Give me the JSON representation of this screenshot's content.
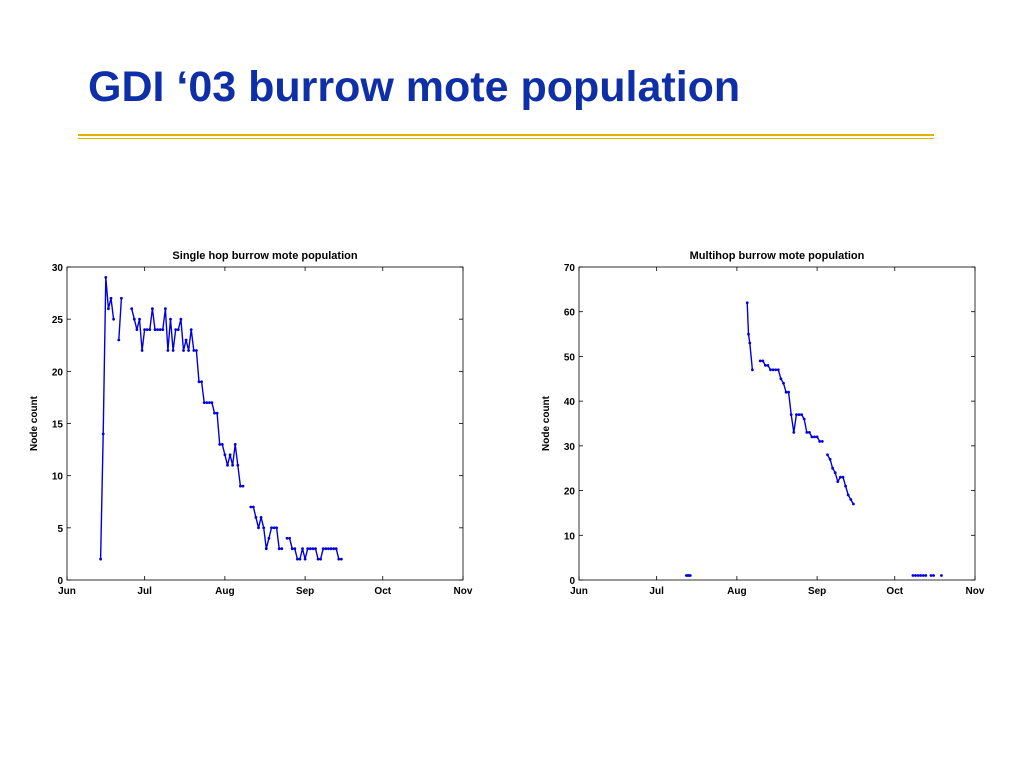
{
  "slide": {
    "title": "GDI ‘03 burrow mote population"
  },
  "colors": {
    "title": "#0f2fa8",
    "rule": "#e3b100",
    "series": "#0000dd"
  },
  "chart_data": [
    {
      "type": "line",
      "title": "Single hop burrow mote population",
      "xlabel": "",
      "ylabel": "Node count",
      "x_unit": "days since Jun 1",
      "xlim": [
        0,
        153
      ],
      "ylim": [
        0,
        30
      ],
      "xticks": [
        {
          "value": 0,
          "label": "Jun"
        },
        {
          "value": 30,
          "label": "Jul"
        },
        {
          "value": 61,
          "label": "Aug"
        },
        {
          "value": 92,
          "label": "Sep"
        },
        {
          "value": 122,
          "label": "Oct"
        },
        {
          "value": 153,
          "label": "Nov"
        }
      ],
      "yticks": [
        0,
        5,
        10,
        15,
        20,
        25,
        30
      ],
      "grid": false,
      "series": [
        {
          "name": "",
          "segments": [
            [
              [
                13,
                2
              ],
              [
                14,
                14
              ],
              [
                15,
                29
              ],
              [
                16,
                26
              ],
              [
                17,
                27
              ],
              [
                18,
                25
              ]
            ],
            [
              [
                20,
                23
              ],
              [
                21,
                27
              ]
            ],
            [
              [
                25,
                26
              ],
              [
                26,
                25
              ],
              [
                27,
                24
              ],
              [
                28,
                25
              ],
              [
                29,
                22
              ],
              [
                30,
                24
              ],
              [
                31,
                24
              ],
              [
                32,
                24
              ],
              [
                33,
                26
              ],
              [
                34,
                24
              ],
              [
                35,
                24
              ],
              [
                36,
                24
              ],
              [
                37,
                24
              ],
              [
                38,
                26
              ],
              [
                39,
                22
              ],
              [
                40,
                25
              ],
              [
                41,
                22
              ],
              [
                42,
                24
              ],
              [
                43,
                24
              ],
              [
                44,
                25
              ],
              [
                45,
                22
              ],
              [
                46,
                23
              ],
              [
                47,
                22
              ],
              [
                48,
                24
              ],
              [
                49,
                22
              ],
              [
                50,
                22
              ],
              [
                51,
                19
              ],
              [
                52,
                19
              ],
              [
                53,
                17
              ],
              [
                54,
                17
              ],
              [
                55,
                17
              ],
              [
                56,
                17
              ],
              [
                57,
                16
              ],
              [
                58,
                16
              ],
              [
                59,
                13
              ],
              [
                60,
                13
              ],
              [
                61,
                12
              ],
              [
                62,
                11
              ],
              [
                63,
                12
              ],
              [
                64,
                11
              ],
              [
                65,
                13
              ],
              [
                66,
                11
              ],
              [
                67,
                9
              ],
              [
                68,
                9
              ]
            ],
            [
              [
                71,
                7
              ],
              [
                72,
                7
              ],
              [
                73,
                6
              ],
              [
                74,
                5
              ],
              [
                75,
                6
              ],
              [
                76,
                5
              ],
              [
                77,
                3
              ],
              [
                78,
                4
              ],
              [
                79,
                5
              ],
              [
                80,
                5
              ],
              [
                81,
                5
              ],
              [
                82,
                3
              ],
              [
                83,
                3
              ]
            ],
            [
              [
                85,
                4
              ],
              [
                86,
                4
              ],
              [
                87,
                3
              ],
              [
                88,
                3
              ],
              [
                89,
                2
              ],
              [
                90,
                2
              ],
              [
                91,
                3
              ],
              [
                92,
                2
              ],
              [
                93,
                3
              ],
              [
                94,
                3
              ],
              [
                95,
                3
              ],
              [
                96,
                3
              ],
              [
                97,
                2
              ],
              [
                98,
                2
              ],
              [
                99,
                3
              ],
              [
                100,
                3
              ],
              [
                101,
                3
              ],
              [
                102,
                3
              ],
              [
                103,
                3
              ],
              [
                104,
                3
              ],
              [
                105,
                2
              ],
              [
                106,
                2
              ]
            ]
          ]
        }
      ]
    },
    {
      "type": "line",
      "title": "Multihop burrow mote population",
      "xlabel": "",
      "ylabel": "Node count",
      "x_unit": "days since Jun 1",
      "xlim": [
        0,
        153
      ],
      "ylim": [
        0,
        70
      ],
      "xticks": [
        {
          "value": 0,
          "label": "Jun"
        },
        {
          "value": 30,
          "label": "Jul"
        },
        {
          "value": 61,
          "label": "Aug"
        },
        {
          "value": 92,
          "label": "Sep"
        },
        {
          "value": 122,
          "label": "Oct"
        },
        {
          "value": 153,
          "label": "Nov"
        }
      ],
      "yticks": [
        0,
        10,
        20,
        30,
        40,
        50,
        60,
        70
      ],
      "grid": false,
      "series": [
        {
          "name": "",
          "segments": [
            [
              [
                41.5,
                1
              ],
              [
                42,
                1
              ],
              [
                42.5,
                1
              ],
              [
                43,
                1
              ]
            ],
            [
              [
                65,
                62
              ],
              [
                65.5,
                55
              ],
              [
                66,
                53
              ],
              [
                67,
                47
              ]
            ],
            [
              [
                70,
                49
              ],
              [
                71,
                49
              ],
              [
                72,
                48
              ],
              [
                73,
                48
              ],
              [
                74,
                47
              ],
              [
                75,
                47
              ],
              [
                76,
                47
              ],
              [
                77,
                47
              ],
              [
                78,
                45
              ],
              [
                79,
                44
              ],
              [
                80,
                42
              ],
              [
                81,
                42
              ],
              [
                82,
                37
              ],
              [
                83,
                33
              ],
              [
                84,
                37
              ],
              [
                85,
                37
              ],
              [
                86,
                37
              ],
              [
                87,
                36
              ],
              [
                88,
                33
              ],
              [
                89,
                33
              ],
              [
                90,
                32
              ],
              [
                91,
                32
              ],
              [
                92,
                32
              ],
              [
                93,
                31
              ],
              [
                94,
                31
              ]
            ],
            [
              [
                96,
                28
              ],
              [
                97,
                27
              ],
              [
                98,
                25
              ],
              [
                99,
                24
              ],
              [
                100,
                22
              ],
              [
                101,
                23
              ],
              [
                102,
                23
              ],
              [
                103,
                21
              ],
              [
                104,
                19
              ],
              [
                105,
                18
              ],
              [
                106,
                17
              ]
            ],
            [
              [
                129,
                1
              ],
              [
                130,
                1
              ],
              [
                131,
                1
              ],
              [
                132,
                1
              ],
              [
                133,
                1
              ],
              [
                134,
                1
              ]
            ],
            [
              [
                136,
                1
              ],
              [
                137,
                1
              ]
            ],
            [
              [
                140,
                1
              ]
            ]
          ]
        }
      ]
    }
  ]
}
